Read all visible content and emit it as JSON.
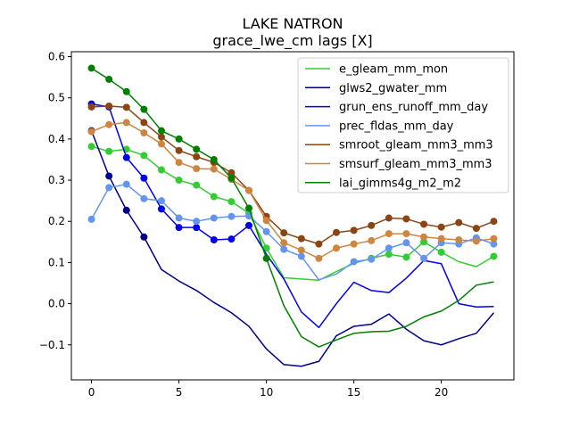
{
  "chart_data": {
    "type": "line",
    "title": "LAKE NATRON",
    "subtitle": "grace_lwe_cm lags [X]",
    "xlabel": "",
    "ylabel": "",
    "xlim": [
      -1.15,
      24.15
    ],
    "ylim": [
      -0.185,
      0.612
    ],
    "xticks": [
      0,
      5,
      10,
      15,
      20
    ],
    "yticks": [
      -0.1,
      0.0,
      0.1,
      0.2,
      0.3,
      0.4,
      0.5,
      0.6
    ],
    "ytick_labels": [
      "−0.1",
      "0.0",
      "0.1",
      "0.2",
      "0.3",
      "0.4",
      "0.5",
      "0.6"
    ],
    "legend_position": "upper-right",
    "x": [
      0,
      1,
      2,
      3,
      4,
      5,
      6,
      7,
      8,
      9,
      10,
      11,
      12,
      13,
      14,
      15,
      16,
      17,
      18,
      19,
      20,
      21,
      22,
      23
    ],
    "series": [
      {
        "name": "e_gleam_mm_mon",
        "color": "#32cd32",
        "values": [
          0.382,
          0.37,
          0.375,
          0.36,
          0.325,
          0.3,
          0.288,
          0.26,
          0.248,
          0.22,
          0.135,
          0.063,
          0.06,
          0.057,
          0.078,
          0.098,
          0.11,
          0.12,
          0.113,
          0.15,
          0.125,
          0.102,
          0.09,
          0.115
        ],
        "markers": [
          true,
          true,
          true,
          true,
          true,
          true,
          true,
          true,
          true,
          true,
          true,
          false,
          false,
          false,
          false,
          false,
          true,
          true,
          true,
          true,
          true,
          false,
          false,
          true
        ]
      },
      {
        "name": "glws2_gwater_mm",
        "color": "#00008b",
        "values": [
          0.42,
          0.31,
          0.227,
          0.162,
          0.083,
          0.055,
          0.032,
          0.003,
          -0.022,
          -0.055,
          -0.11,
          -0.148,
          -0.152,
          -0.14,
          -0.078,
          -0.055,
          -0.05,
          -0.025,
          -0.062,
          -0.09,
          -0.1,
          -0.085,
          -0.072,
          -0.022
        ],
        "markers": [
          true,
          true,
          true,
          true,
          false,
          false,
          false,
          false,
          false,
          false,
          false,
          false,
          false,
          false,
          false,
          false,
          false,
          false,
          false,
          false,
          false,
          false,
          false,
          false
        ]
      },
      {
        "name": "grun_ens_runoff_mm_day",
        "color": "#0000ee",
        "values": [
          0.485,
          0.478,
          0.355,
          0.305,
          0.23,
          0.185,
          0.185,
          0.155,
          0.157,
          0.19,
          0.12,
          0.06,
          -0.02,
          -0.058,
          0.0,
          0.052,
          0.032,
          0.027,
          0.062,
          0.105,
          0.097,
          0.0,
          -0.008,
          -0.007
        ],
        "markers": [
          true,
          true,
          true,
          true,
          true,
          true,
          true,
          true,
          true,
          true,
          false,
          false,
          false,
          false,
          false,
          false,
          false,
          false,
          false,
          false,
          false,
          false,
          false,
          false
        ]
      },
      {
        "name": "prec_fldas_mm_day",
        "color": "#6495ed",
        "values": [
          0.205,
          0.282,
          0.29,
          0.255,
          0.25,
          0.208,
          0.2,
          0.208,
          0.212,
          0.213,
          0.175,
          0.132,
          0.115,
          0.058,
          0.072,
          0.102,
          0.108,
          0.135,
          0.148,
          0.11,
          0.148,
          0.145,
          0.16,
          0.145
        ],
        "markers": [
          true,
          true,
          true,
          true,
          true,
          true,
          true,
          true,
          true,
          true,
          true,
          true,
          true,
          false,
          false,
          true,
          true,
          true,
          true,
          true,
          true,
          true,
          true,
          true
        ]
      },
      {
        "name": "smroot_gleam_mm3_mm3",
        "color": "#8b4513",
        "values": [
          0.478,
          0.48,
          0.477,
          0.44,
          0.405,
          0.372,
          0.357,
          0.343,
          0.318,
          0.275,
          0.212,
          0.172,
          0.158,
          0.145,
          0.173,
          0.178,
          0.19,
          0.208,
          0.206,
          0.193,
          0.186,
          0.197,
          0.183,
          0.2
        ],
        "markers": [
          true,
          true,
          true,
          true,
          true,
          true,
          true,
          true,
          true,
          true,
          true,
          true,
          true,
          true,
          true,
          true,
          true,
          true,
          true,
          true,
          true,
          true,
          true,
          true
        ]
      },
      {
        "name": "smsurf_gleam_mm3_mm3",
        "color": "#cd853f",
        "values": [
          0.418,
          0.435,
          0.44,
          0.415,
          0.388,
          0.343,
          0.328,
          0.327,
          0.302,
          0.275,
          0.202,
          0.148,
          0.13,
          0.11,
          0.135,
          0.145,
          0.153,
          0.17,
          0.17,
          0.162,
          0.158,
          0.155,
          0.152,
          0.158
        ],
        "markers": [
          true,
          true,
          true,
          true,
          true,
          true,
          true,
          true,
          true,
          true,
          true,
          true,
          true,
          true,
          true,
          true,
          true,
          true,
          true,
          true,
          true,
          true,
          true,
          true
        ]
      },
      {
        "name": "lai_gimms4g_m2_m2",
        "color": "#008000",
        "values": [
          0.572,
          0.545,
          0.515,
          0.472,
          0.42,
          0.4,
          0.375,
          0.35,
          0.305,
          0.232,
          0.11,
          -0.005,
          -0.08,
          -0.105,
          -0.088,
          -0.072,
          -0.068,
          -0.067,
          -0.055,
          -0.032,
          -0.018,
          0.008,
          0.045,
          0.053
        ],
        "markers": [
          true,
          true,
          true,
          true,
          true,
          true,
          true,
          true,
          true,
          true,
          true,
          false,
          false,
          false,
          false,
          false,
          false,
          false,
          false,
          false,
          false,
          false,
          false,
          false
        ]
      }
    ]
  }
}
